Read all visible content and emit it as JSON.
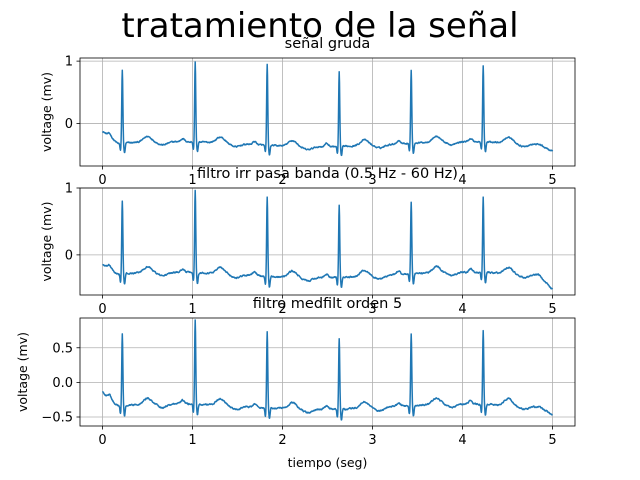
{
  "figure": {
    "suptitle": "tratamiento de la señal",
    "line_color": "#1f77b4",
    "grid_color": "#b0b0b0"
  },
  "chart_data": [
    {
      "type": "line",
      "title": "señal gruda",
      "xlabel": "",
      "ylabel": "voltage (mv)",
      "xlim": [
        -0.25,
        5.25
      ],
      "ylim": [
        -0.68,
        1.05
      ],
      "xticks": [
        0,
        1,
        2,
        3,
        4,
        5
      ],
      "yticks": [
        1,
        0
      ],
      "grid": true,
      "signal": {
        "duration": 5,
        "baseline": -0.33,
        "start_level": -0.12,
        "end_level": -0.45,
        "beats": [
          {
            "t": 0.22,
            "r": 0.84
          },
          {
            "t": 1.03,
            "r": 0.95
          },
          {
            "t": 1.83,
            "r": 0.96
          },
          {
            "t": 2.63,
            "r": 0.86
          },
          {
            "t": 3.43,
            "r": 0.83
          },
          {
            "t": 4.23,
            "r": 0.89
          }
        ]
      }
    },
    {
      "type": "line",
      "title": "filtro irr pasa banda (0.5 Hz - 60 Hz)",
      "xlabel": "",
      "ylabel": "voltage (mv)",
      "xlim": [
        -0.25,
        5.25
      ],
      "ylim": [
        -0.6,
        1.0
      ],
      "xticks": [
        0,
        1,
        2,
        3,
        4,
        5
      ],
      "yticks": [
        1,
        0
      ],
      "grid": true,
      "signal": {
        "duration": 5,
        "baseline": -0.3,
        "start_level": -0.14,
        "end_level": -0.52,
        "beats": [
          {
            "t": 0.22,
            "r": 0.79
          },
          {
            "t": 1.03,
            "r": 0.94
          },
          {
            "t": 1.83,
            "r": 0.89
          },
          {
            "t": 2.63,
            "r": 0.78
          },
          {
            "t": 3.43,
            "r": 0.77
          },
          {
            "t": 4.23,
            "r": 0.82
          }
        ]
      }
    },
    {
      "type": "line",
      "title": "filtro medfilt orden 5",
      "xlabel": "tiempo (seg)",
      "ylabel": "voltage (mv)",
      "xlim": [
        -0.25,
        5.25
      ],
      "ylim": [
        -0.63,
        0.93
      ],
      "xticks": [
        0,
        1,
        2,
        3,
        4,
        5
      ],
      "yticks": [
        0.5,
        0.0,
        -0.5
      ],
      "ytick_labels": [
        "0.5",
        "0.0",
        "−0.5"
      ],
      "grid": true,
      "signal": {
        "duration": 5,
        "baseline": -0.35,
        "start_level": -0.14,
        "end_level": -0.47,
        "beats": [
          {
            "t": 0.22,
            "r": 0.69
          },
          {
            "t": 1.03,
            "r": 0.87
          },
          {
            "t": 1.83,
            "r": 0.74
          },
          {
            "t": 2.63,
            "r": 0.67
          },
          {
            "t": 3.43,
            "r": 0.67
          },
          {
            "t": 4.23,
            "r": 0.71
          }
        ]
      }
    }
  ]
}
